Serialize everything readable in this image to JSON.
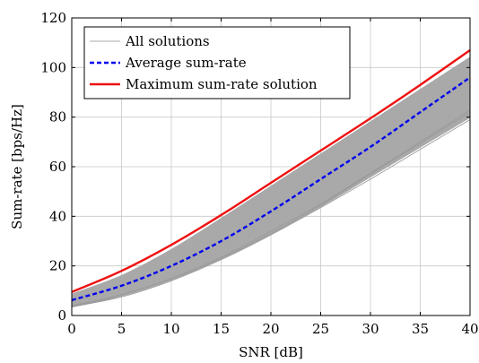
{
  "chart_data": {
    "type": "line",
    "xlabel": "SNR [dB]",
    "ylabel": "Sum-rate [bps/Hz]",
    "xlim": [
      0,
      40
    ],
    "ylim": [
      0,
      120
    ],
    "xticks": [
      0,
      5,
      10,
      15,
      20,
      25,
      30,
      35,
      40
    ],
    "yticks": [
      0,
      20,
      40,
      60,
      80,
      100,
      120
    ],
    "grid": true,
    "legend_position": "top-left",
    "x": [
      0,
      5,
      10,
      15,
      20,
      25,
      30,
      35,
      40
    ],
    "series": [
      {
        "name": "All solutions",
        "role": "band",
        "color": "#a9a9a9",
        "lower": [
          3.5,
          8,
          14.5,
          23,
          33,
          44,
          56,
          68,
          80
        ],
        "upper": [
          8.5,
          16,
          26.5,
          39,
          52,
          65,
          78,
          91,
          104
        ],
        "extra_lines": [
          [
            3.5,
            7.5,
            14,
            22.5,
            32.5,
            43.5,
            55,
            67,
            79
          ],
          [
            4,
            8.5,
            15,
            23.5,
            34,
            45,
            57.5,
            70,
            83
          ],
          [
            3.8,
            8,
            14.5,
            23,
            33,
            44.5,
            57,
            69.5,
            82
          ]
        ]
      },
      {
        "name": "Average sum-rate",
        "role": "line",
        "color": "#0000ee",
        "dash": true,
        "values": [
          6.2,
          12,
          20,
          30,
          42,
          55,
          68,
          82,
          96
        ]
      },
      {
        "name": "Maximum sum-rate solution",
        "role": "line",
        "color": "#ee1111",
        "dash": false,
        "values": [
          9.5,
          18,
          28.5,
          40.5,
          53.5,
          66.5,
          79.5,
          93,
          107
        ]
      }
    ]
  }
}
